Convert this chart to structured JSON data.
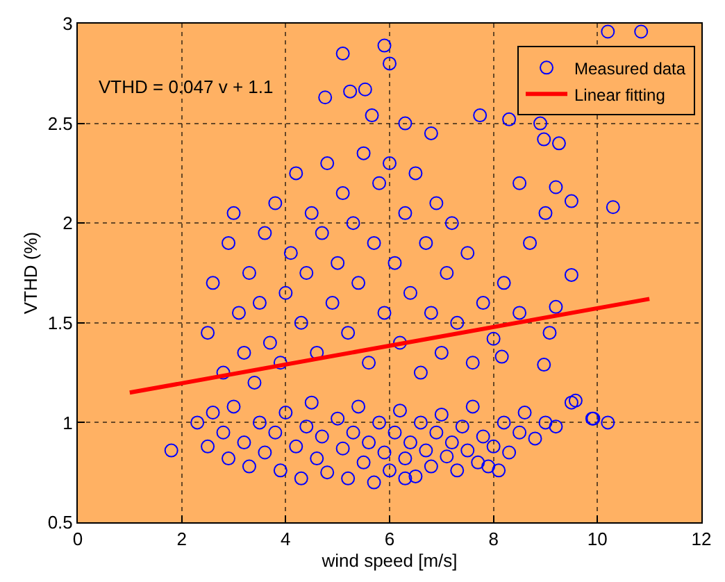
{
  "chart_data": {
    "type": "scatter",
    "xlabel": "wind speed [m/s]",
    "ylabel": "VTHD (%)",
    "annotations": [
      "VTHD = 0.047 v + 1.1"
    ],
    "xlim": [
      0,
      12
    ],
    "ylim": [
      0.5,
      3
    ],
    "xticks": [
      0,
      2,
      4,
      6,
      8,
      10,
      12
    ],
    "yticks": [
      0.5,
      1,
      1.5,
      2,
      2.5,
      3
    ],
    "grid": true,
    "legend": "top right",
    "series": [
      {
        "name": "Measured data",
        "marker": "circle",
        "color": "#0000ff",
        "x": [
          2.3,
          2.5,
          2.6,
          2.8,
          2.9,
          3.0,
          3.2,
          3.3,
          3.5,
          3.6,
          3.8,
          3.9,
          4.0,
          4.2,
          4.3,
          4.4,
          4.5,
          4.6,
          4.7,
          4.8,
          5.0,
          5.1,
          5.2,
          5.3,
          5.4,
          5.5,
          5.6,
          5.7,
          5.8,
          5.9,
          6.0,
          6.1,
          6.2,
          6.3,
          6.4,
          6.5,
          6.6,
          6.7,
          6.8,
          6.9,
          7.0,
          7.1,
          7.2,
          7.3,
          7.4,
          7.5,
          7.6,
          7.7,
          7.8,
          7.9,
          8.0,
          8.2,
          8.3,
          8.5,
          8.6,
          8.8,
          9.0,
          9.2,
          9.5,
          9.9,
          1.8,
          10.2,
          8.1,
          6.3,
          2.5,
          2.6,
          2.8,
          2.9,
          3.0,
          3.1,
          3.2,
          3.3,
          3.4,
          3.5,
          3.6,
          3.7,
          3.8,
          3.9,
          4.0,
          4.1,
          4.2,
          4.3,
          4.4,
          4.5,
          4.6,
          4.7,
          4.8,
          4.9,
          5.0,
          5.1,
          5.2,
          5.3,
          5.4,
          5.5,
          5.6,
          5.7,
          5.8,
          5.9,
          6.0,
          6.1,
          6.2,
          6.3,
          6.4,
          6.5,
          6.6,
          6.7,
          6.8,
          6.9,
          7.0,
          7.1,
          7.2,
          7.3,
          7.5,
          7.6,
          7.8,
          8.0,
          8.2,
          8.5,
          8.7,
          8.16,
          8.97,
          9.08,
          9.2,
          9.5,
          9.58,
          9.92,
          9.0,
          8.5,
          4.76,
          5.1,
          5.24,
          5.53,
          5.66,
          5.9,
          6.0,
          10.2,
          10.84,
          10.3,
          9.5,
          9.2,
          8.9,
          8.97,
          9.26,
          8.3,
          7.74,
          6.8,
          6.3
        ],
        "values": [
          1.0,
          0.88,
          1.05,
          0.95,
          0.82,
          1.08,
          0.9,
          0.78,
          1.0,
          0.85,
          0.95,
          0.76,
          1.05,
          0.88,
          0.72,
          0.98,
          1.1,
          0.82,
          0.93,
          0.75,
          1.02,
          0.87,
          0.72,
          0.95,
          1.08,
          0.8,
          0.9,
          0.7,
          1.0,
          0.85,
          0.76,
          0.95,
          1.06,
          0.82,
          0.9,
          0.73,
          1.0,
          0.86,
          0.78,
          0.95,
          1.04,
          0.83,
          0.9,
          0.76,
          0.98,
          0.86,
          1.08,
          0.8,
          0.93,
          0.78,
          0.88,
          1.0,
          0.85,
          0.95,
          1.05,
          0.92,
          1.0,
          0.98,
          1.1,
          1.02,
          0.86,
          1.0,
          0.76,
          0.72,
          1.45,
          1.7,
          1.25,
          1.9,
          2.05,
          1.55,
          1.35,
          1.75,
          1.2,
          1.6,
          1.95,
          1.4,
          2.1,
          1.3,
          1.65,
          1.85,
          2.25,
          1.5,
          1.75,
          2.05,
          1.35,
          1.95,
          2.3,
          1.6,
          1.8,
          2.15,
          1.45,
          2.0,
          1.7,
          2.35,
          1.3,
          1.9,
          2.2,
          1.55,
          2.3,
          1.8,
          1.4,
          2.05,
          1.65,
          2.25,
          1.25,
          1.9,
          1.55,
          2.1,
          1.35,
          1.75,
          2.0,
          1.5,
          1.85,
          1.3,
          1.6,
          1.42,
          1.7,
          1.55,
          1.9,
          1.33,
          1.29,
          1.45,
          1.58,
          1.74,
          1.11,
          1.02,
          2.05,
          2.2,
          2.63,
          2.85,
          2.66,
          2.67,
          2.54,
          2.89,
          2.8,
          2.96,
          2.96,
          2.08,
          2.11,
          2.18,
          2.5,
          2.42,
          2.4,
          2.52,
          2.54,
          2.45,
          2.5
        ]
      },
      {
        "name": "Linear fitting",
        "type": "line",
        "color": "#ff0000",
        "x": [
          1,
          11
        ],
        "values": [
          1.15,
          1.62
        ]
      }
    ]
  }
}
